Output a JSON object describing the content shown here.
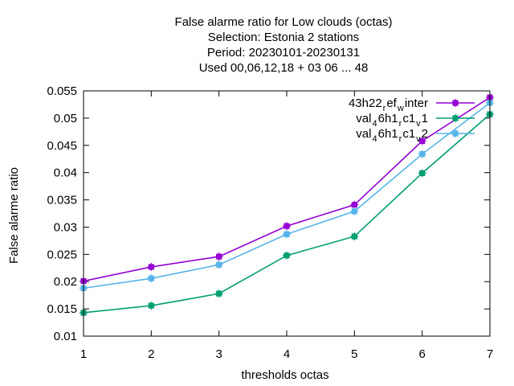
{
  "chart_data": {
    "type": "line",
    "title": [
      "False alarme ratio  for Low clouds (octas)",
      "Selection: Estonia      2 stations",
      "Period: 20230101-20230131",
      "Used  00,06,12,18  + 03 06 ... 48"
    ],
    "xlabel": "thresholds octas",
    "ylabel": "False alarme ratio",
    "xlim": [
      1,
      7
    ],
    "ylim": [
      0.01,
      0.055
    ],
    "x_ticks": [
      1,
      2,
      3,
      4,
      5,
      6,
      7
    ],
    "x_tick_labels": [
      "1",
      "2",
      "3",
      "4",
      "5",
      "6",
      "7"
    ],
    "y_ticks": [
      0.01,
      0.015,
      0.02,
      0.025,
      0.03,
      0.035,
      0.04,
      0.045,
      0.05,
      0.055
    ],
    "y_tick_labels": [
      "0.01",
      "0.015",
      "0.02",
      "0.025",
      "0.03",
      "0.035",
      "0.04",
      "0.045",
      "0.05",
      "0.055"
    ],
    "grid": false,
    "legend_position": "top-right",
    "x": [
      1,
      2,
      3,
      4,
      5,
      6,
      7
    ],
    "series": [
      {
        "name": "43h22_ref_winter",
        "legend_parts": [
          "43h22",
          "r",
          "ef",
          "w",
          "inter"
        ],
        "color": "#9400d3",
        "values": [
          0.0201,
          0.0227,
          0.0246,
          0.0302,
          0.0341,
          0.0458,
          0.0538
        ]
      },
      {
        "name": "val_46h1_rc1_v1",
        "legend_parts": [
          "val",
          "4",
          "6h1",
          "r",
          "c1",
          "v",
          "1"
        ],
        "color": "#009e73",
        "values": [
          0.0143,
          0.0156,
          0.0178,
          0.0248,
          0.0283,
          0.0399,
          0.0507
        ]
      },
      {
        "name": "val_46h1_rc1_v2",
        "legend_parts": [
          "val",
          "4",
          "6h1",
          "r",
          "c1",
          "v",
          "2"
        ],
        "color": "#56b4e9",
        "values": [
          0.0188,
          0.0206,
          0.0231,
          0.0287,
          0.0329,
          0.0434,
          0.0528
        ]
      }
    ]
  }
}
